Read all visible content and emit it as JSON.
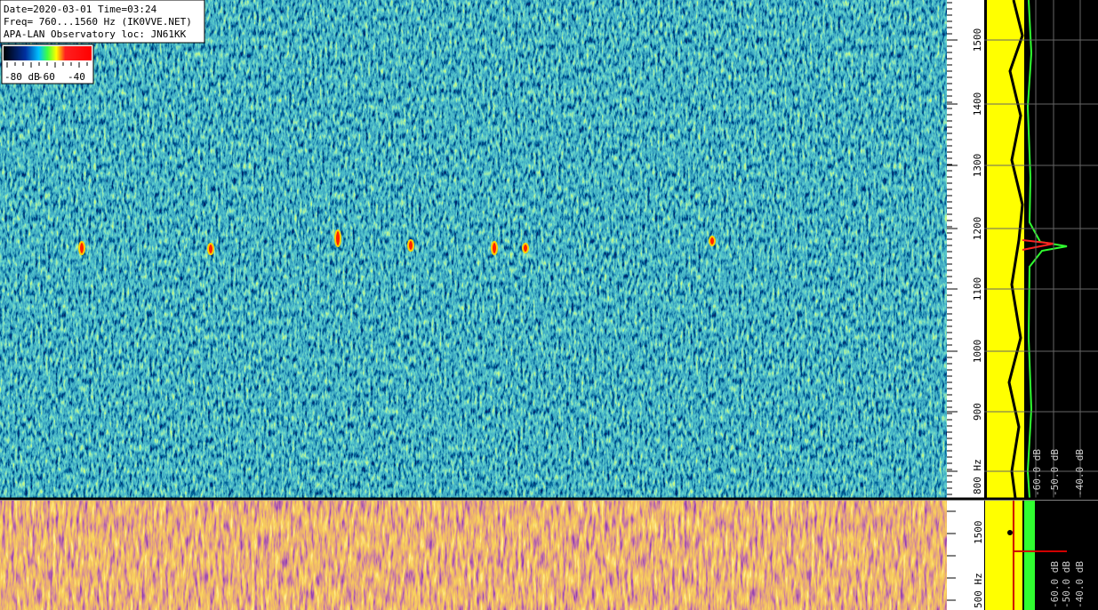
{
  "header": {
    "date_line": "Date=2020-03-01 Time=03:24",
    "freq_line": "Freq= 760...1560 Hz (IK0VVE.NET)",
    "site_line": "APA-LAN Observatory loc: JN61KK"
  },
  "colorbar": {
    "labels": [
      "-80 dB",
      "-60",
      "-40"
    ]
  },
  "waterfall": {
    "freq_labels": [
      "1500",
      "1400",
      "1300",
      "1200",
      "1100",
      "1000",
      "900",
      "800 Hz"
    ]
  },
  "spectrum": {
    "level_labels": [
      "-60.0 dB",
      "-50.0 dB",
      "-40.0 dB"
    ]
  },
  "lower": {
    "freq_labels": [
      "1500",
      "500 Hz"
    ],
    "level_labels": [
      "-60.0 dB",
      "-50.0 dB",
      "-40.0 dB"
    ]
  }
}
